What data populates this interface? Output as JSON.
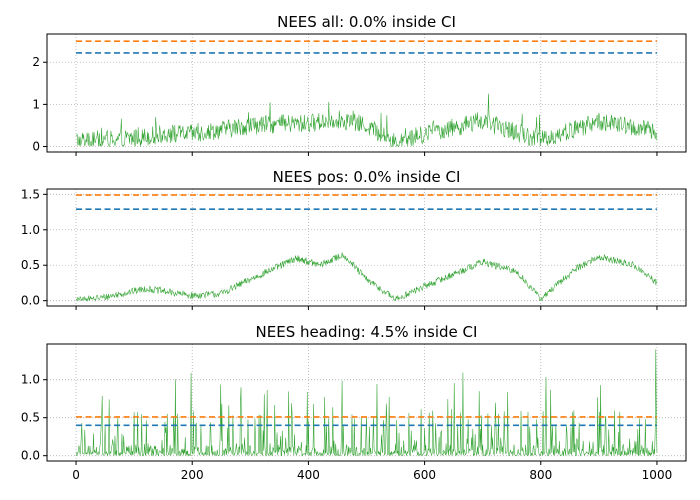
{
  "chart_data": [
    {
      "type": "line",
      "title": "NEES all: 0.0% inside CI",
      "x": [
        0,
        1000
      ],
      "xlim": [
        -50,
        1050
      ],
      "ylim": [
        -0.13,
        2.67
      ],
      "xticks": [
        0,
        200,
        400,
        600,
        800,
        1000
      ],
      "yticks": [
        0,
        1,
        2
      ],
      "ytick_labels": [
        "0",
        "1",
        "2"
      ],
      "xtick_labels_shown": false,
      "grid": true,
      "series": [
        {
          "role": "nees",
          "color": "#2ca02c",
          "style": "solid",
          "points": 1001,
          "envelope": [
            [
              0,
              0.15
            ],
            [
              100,
              0.2
            ],
            [
              150,
              0.3
            ],
            [
              200,
              0.3
            ],
            [
              300,
              0.5
            ],
            [
              400,
              0.55
            ],
            [
              450,
              0.65
            ],
            [
              500,
              0.5
            ],
            [
              550,
              0.1
            ],
            [
              600,
              0.3
            ],
            [
              700,
              0.6
            ],
            [
              800,
              0.15
            ],
            [
              900,
              0.6
            ],
            [
              1000,
              0.35
            ]
          ]
        },
        {
          "role": "ci_lower",
          "color": "#1f77b4",
          "style": "dashed",
          "value": 2.22
        },
        {
          "role": "ci_upper",
          "color": "#ff7f0e",
          "style": "dashed",
          "value": 2.5
        }
      ]
    },
    {
      "type": "line",
      "title": "NEES pos: 0.0% inside CI",
      "x": [
        0,
        1000
      ],
      "xlim": [
        -50,
        1050
      ],
      "ylim": [
        -0.075,
        1.575
      ],
      "xticks": [
        0,
        200,
        400,
        600,
        800,
        1000
      ],
      "yticks": [
        0.0,
        0.5,
        1.0,
        1.5
      ],
      "ytick_labels": [
        "0.0",
        "0.5",
        "1.0",
        "1.5"
      ],
      "xtick_labels_shown": false,
      "grid": true,
      "series": [
        {
          "role": "nees",
          "color": "#2ca02c",
          "style": "solid",
          "points": 1001,
          "envelope": [
            [
              0,
              0.0
            ],
            [
              50,
              0.05
            ],
            [
              120,
              0.17
            ],
            [
              200,
              0.07
            ],
            [
              250,
              0.1
            ],
            [
              300,
              0.3
            ],
            [
              380,
              0.6
            ],
            [
              420,
              0.5
            ],
            [
              460,
              0.65
            ],
            [
              500,
              0.3
            ],
            [
              550,
              0.02
            ],
            [
              600,
              0.2
            ],
            [
              700,
              0.55
            ],
            [
              760,
              0.4
            ],
            [
              800,
              0.02
            ],
            [
              860,
              0.45
            ],
            [
              900,
              0.62
            ],
            [
              960,
              0.5
            ],
            [
              1000,
              0.25
            ]
          ]
        },
        {
          "role": "ci_lower",
          "color": "#1f77b4",
          "style": "dashed",
          "value": 1.29
        },
        {
          "role": "ci_upper",
          "color": "#ff7f0e",
          "style": "dashed",
          "value": 1.49
        }
      ]
    },
    {
      "type": "line",
      "title": "NEES heading: 4.5% inside CI",
      "x": [
        0,
        1000
      ],
      "xlim": [
        -50,
        1050
      ],
      "ylim": [
        -0.07,
        1.47
      ],
      "xticks": [
        0,
        200,
        400,
        600,
        800,
        1000
      ],
      "yticks": [
        0.0,
        0.5,
        1.0
      ],
      "ytick_labels": [
        "0.0",
        "0.5",
        "1.0"
      ],
      "xtick_labels": [
        "0",
        "200",
        "400",
        "600",
        "800",
        "1000"
      ],
      "xtick_labels_shown": true,
      "grid": true,
      "series": [
        {
          "role": "nees",
          "color": "#2ca02c",
          "style": "solid",
          "points": 1001,
          "envelope": [
            [
              0,
              0.0
            ],
            [
              1000,
              0.0
            ]
          ],
          "spike_max": 1.4
        },
        {
          "role": "ci_lower",
          "color": "#1f77b4",
          "style": "dashed",
          "value": 0.4
        },
        {
          "role": "ci_upper",
          "color": "#ff7f0e",
          "style": "dashed",
          "value": 0.51
        }
      ]
    }
  ]
}
